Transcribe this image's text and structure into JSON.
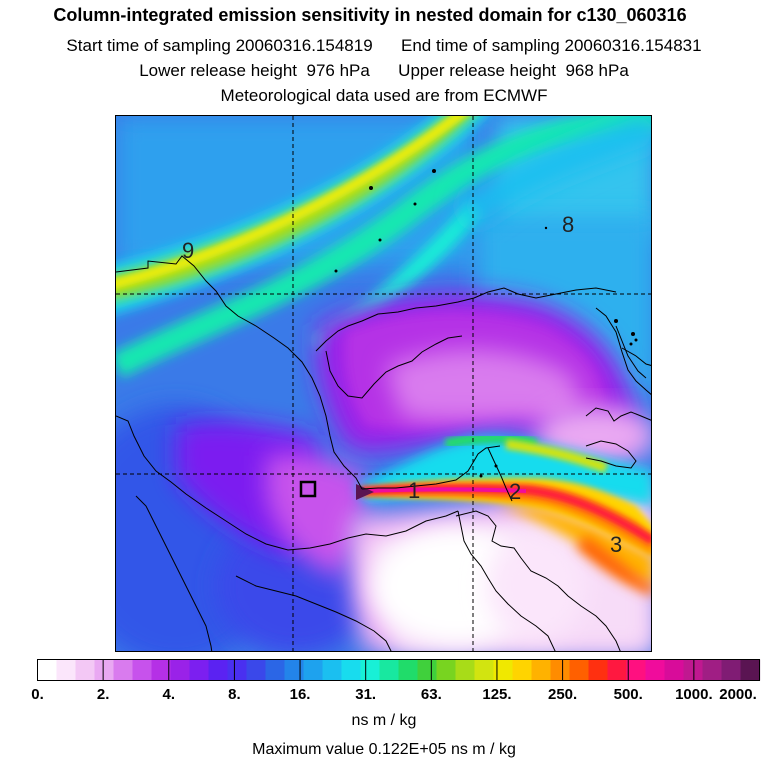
{
  "title": "Column-integrated emission sensitivity in nested domain for c130_060316",
  "sampling": {
    "start_label": "Start time of sampling",
    "start_value": "20060316.154819",
    "end_label": "End time of sampling",
    "end_value": "20060316.154831"
  },
  "release": {
    "lower_label": "Lower release height",
    "lower_value": "976 hPa",
    "upper_label": "Upper release height",
    "upper_value": "968 hPa"
  },
  "met_line": "Meteorological data used are from ECMWF",
  "map": {
    "contour_labels": [
      "9",
      "8",
      "1",
      "2",
      "3"
    ],
    "gridlines": "dashed",
    "receptor_marker": "open-square"
  },
  "colorbar": {
    "ticks": [
      "0.",
      "2.",
      "4.",
      "8.",
      "16.",
      "31.",
      "63.",
      "125.",
      "250.",
      "500.",
      "1000.",
      "2000."
    ],
    "units": "ns m / kg",
    "colors": [
      "#ffffff",
      "#fbe6fb",
      "#f3c8f5",
      "#e9a8f2",
      "#d97bee",
      "#c752ec",
      "#b530e6",
      "#9a22e8",
      "#7c1ff0",
      "#5b22f2",
      "#4a30f0",
      "#3a48ea",
      "#2b66e6",
      "#2384ea",
      "#1ea2ee",
      "#1bbff0",
      "#18dcee",
      "#18f0d6",
      "#18e8a0",
      "#20dc6a",
      "#40d03c",
      "#78d420",
      "#a8dc18",
      "#d2e410",
      "#f0e800",
      "#ffd400",
      "#ffb200",
      "#ff8c00",
      "#ff6000",
      "#ff3010",
      "#ff1840",
      "#ff1080",
      "#f00c9c",
      "#d80c9a",
      "#c01890",
      "#a01e84",
      "#801c74",
      "#5a1452"
    ]
  },
  "maximum": {
    "label": "Maximum value",
    "value": "0.122E+05",
    "units": "ns m / kg"
  }
}
